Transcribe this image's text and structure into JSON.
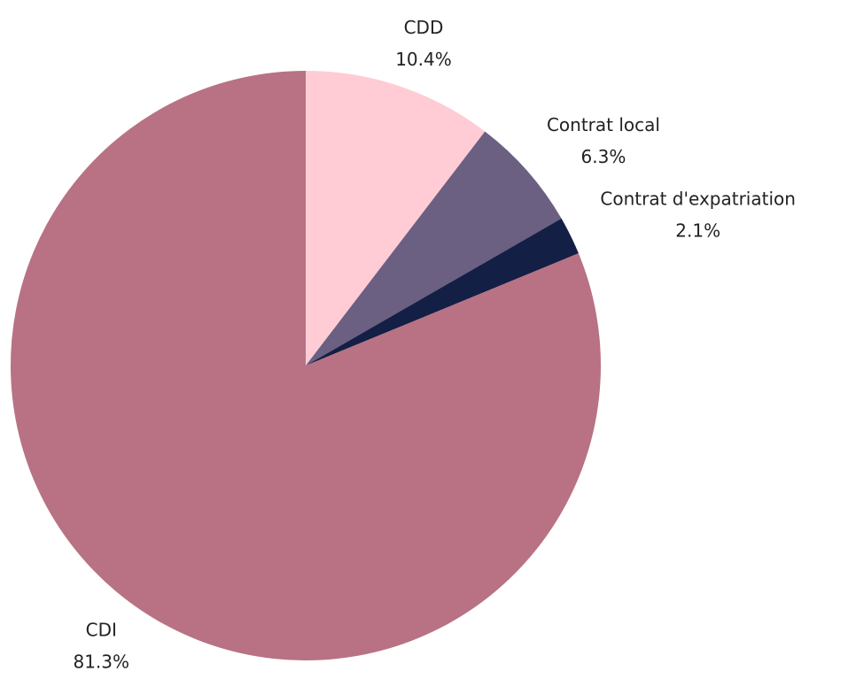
{
  "chart_data": {
    "type": "pie",
    "categories": [
      "CDD",
      "Contrat local",
      "Contrat d'expatriation",
      "CDI"
    ],
    "values": [
      10.4,
      6.3,
      2.1,
      81.3
    ],
    "value_labels": [
      "10.4%",
      "6.3%",
      "2.1%",
      "81.3%"
    ],
    "colors": [
      "#ffccd5",
      "#6b5f82",
      "#141f45",
      "#b87284"
    ]
  }
}
